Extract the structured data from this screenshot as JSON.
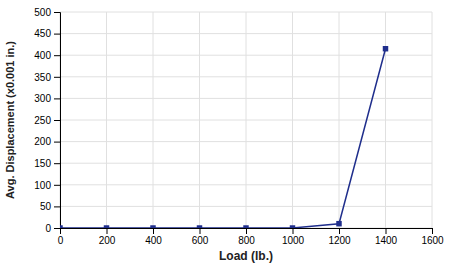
{
  "chart_data": {
    "type": "line",
    "x": [
      0,
      200,
      400,
      600,
      800,
      1000,
      1200,
      1400
    ],
    "values": [
      0,
      0,
      0,
      0,
      0,
      0,
      10,
      415
    ],
    "color": "#1f2e8c",
    "marker": "square",
    "xlabel": "Load (lb.)",
    "ylabel": "Avg. Displacement (x0.001 in.)",
    "xlim": [
      0,
      1600
    ],
    "ylim": [
      0,
      500
    ],
    "xticks": [
      0,
      200,
      400,
      600,
      800,
      1000,
      1200,
      1400,
      1600
    ],
    "yticks": [
      0,
      50,
      100,
      150,
      200,
      250,
      300,
      350,
      400,
      450,
      500
    ],
    "grid": true
  }
}
